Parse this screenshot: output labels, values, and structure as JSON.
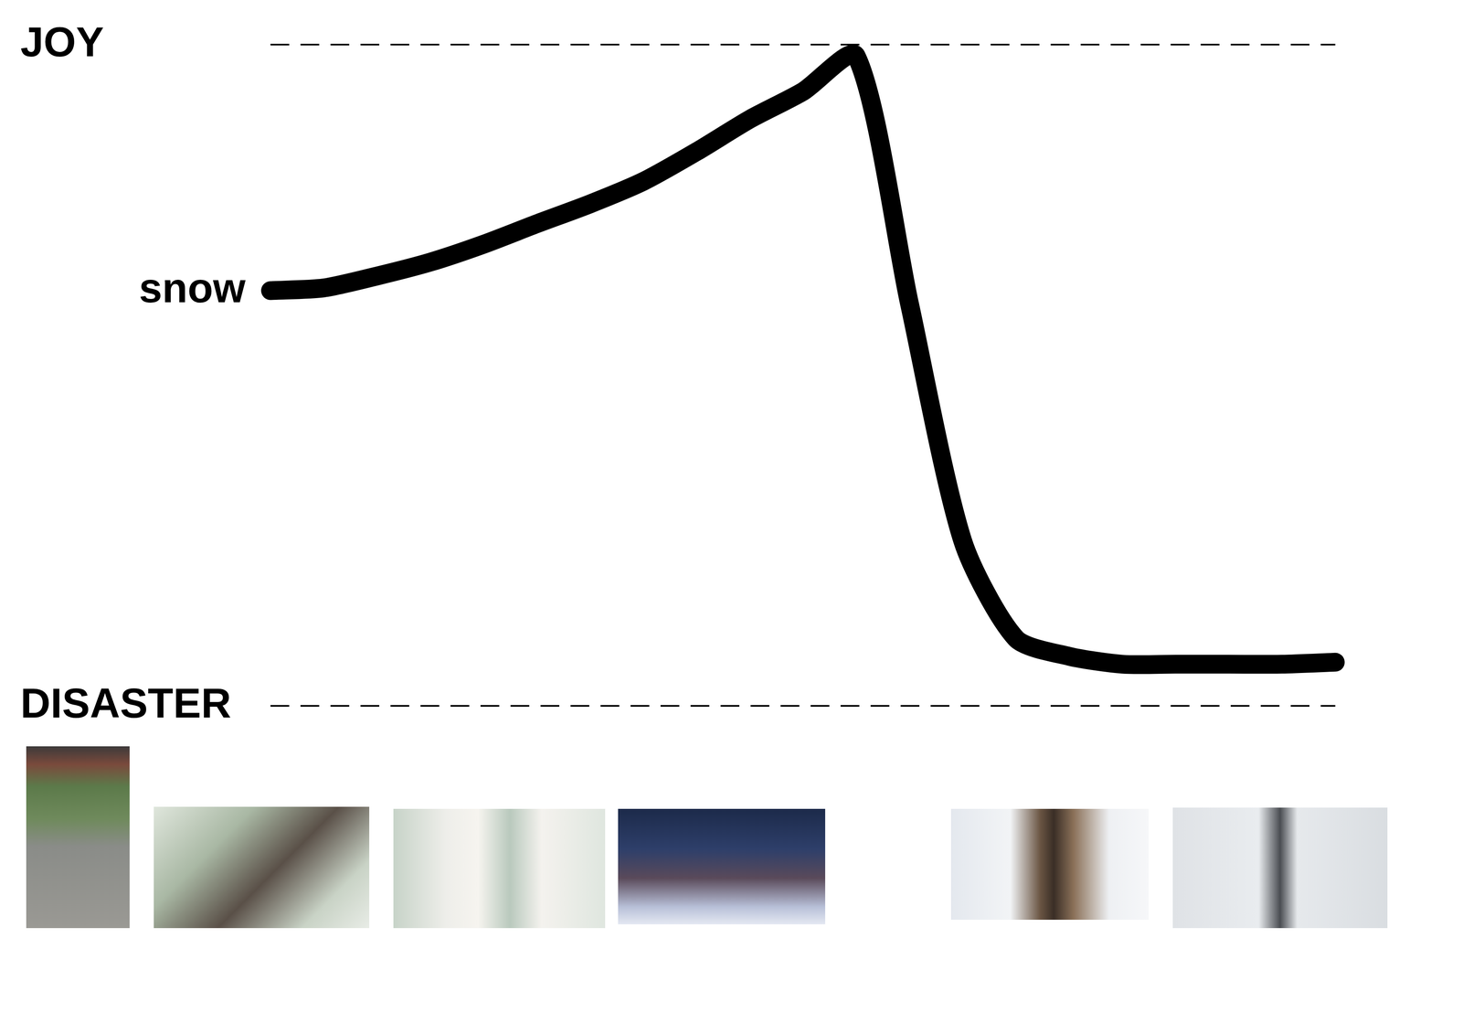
{
  "chart_data": {
    "type": "line",
    "categories": [
      null,
      null,
      null,
      null,
      null,
      null,
      null,
      null,
      null,
      null,
      null,
      null,
      null,
      null,
      null,
      null,
      null,
      null,
      null,
      null,
      null
    ],
    "series": [
      {
        "name": "snow",
        "color": "#000000",
        "values": [
          62.8,
          63.2,
          65.0,
          67.1,
          69.8,
          72.9,
          75.9,
          79.3,
          83.8,
          88.7,
          92.9,
          98.3,
          60.9,
          25.0,
          10.2,
          7.5,
          6.3,
          6.3,
          6.3,
          6.3,
          6.6
        ]
      }
    ],
    "ylim": [
      0,
      100
    ],
    "yticks": [
      {
        "value": 0,
        "label": "DISASTER"
      },
      {
        "value": 100,
        "label": "JOY"
      }
    ],
    "grid": true,
    "tick_labels": "y"
  }
}
